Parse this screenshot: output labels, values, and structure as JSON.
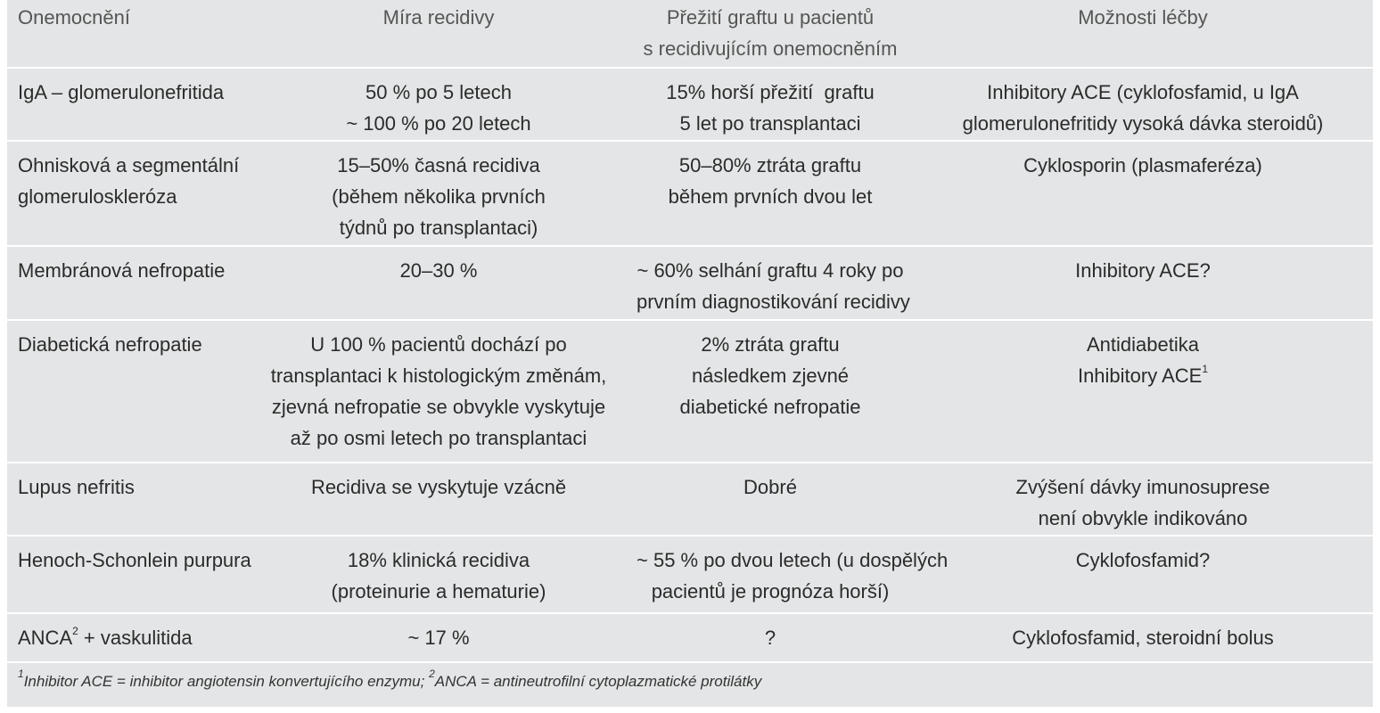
{
  "headers": {
    "disease": "Onemocnění",
    "recurrence_rate": [
      "Míra recidivy"
    ],
    "graft_survival": [
      "Přežití graftu u pacientů",
      "s recidivujícím onemocněním"
    ],
    "treatment": [
      "Možnosti léčby"
    ]
  },
  "rows": [
    {
      "disease": [
        "IgA – glomerulonefritida"
      ],
      "recurrence_rate": [
        "50 % po 5 letech",
        "~ 100 % po 20 letech"
      ],
      "graft_survival": [
        "15% horší přežití  graftu",
        "5 let po transplantaci"
      ],
      "treatment": [
        "Inhibitory ACE (cyklofosfamid, u IgA",
        "glomerulonefritidy vysoká dávka steroidů)"
      ]
    },
    {
      "disease": [
        "Ohnisková a segmentální",
        "glomeruloskleróza"
      ],
      "recurrence_rate": [
        "15–50% časná recidiva",
        "(během několika prvních",
        "týdnů po transplantaci)"
      ],
      "graft_survival": [
        "50–80% ztráta graftu",
        "během prvních dvou let"
      ],
      "treatment": [
        "Cyklosporin (plasmaferéza)"
      ]
    },
    {
      "disease": [
        "Membránová nefropatie"
      ],
      "recurrence_rate": [
        "20–30 %"
      ],
      "graft_survival": [
        "~ 60% selhání graftu 4 roky po",
        "prvním diagnostikování recidivy"
      ],
      "treatment": [
        "Inhibitory ACE?"
      ]
    },
    {
      "disease": [
        "Diabetická nefropatie"
      ],
      "recurrence_rate": [
        "U 100 % pacientů dochází po",
        "transplantaci k histologickým změnám,",
        "zjevná nefropatie se obvykle vyskytuje",
        "až po osmi letech po transplantaci"
      ],
      "graft_survival": [
        "2% ztráta graftu",
        "následkem zjevné",
        "diabetické nefropatie"
      ],
      "treatment": [
        "Antidiabetika",
        "Inhibitory ACE"
      ],
      "treatment_sup": "1"
    },
    {
      "disease": [
        "Lupus nefritis"
      ],
      "recurrence_rate": [
        "Recidiva se vyskytuje vzácně"
      ],
      "graft_survival": [
        "Dobré"
      ],
      "treatment": [
        "Zvýšení dávky imunosuprese",
        "není obvykle indikováno"
      ]
    },
    {
      "disease": [
        "Henoch-Schonlein purpura"
      ],
      "recurrence_rate": [
        "18% klinická recidiva",
        "(proteinurie a hematurie)"
      ],
      "graft_survival": [
        "~ 55 % po dvou letech (u dospělých",
        "pacientů je prognóza horší)"
      ],
      "treatment": [
        "Cyklofosfamid?"
      ]
    },
    {
      "disease": [
        "ANCA",
        " + vaskulitida"
      ],
      "disease_sup": "2",
      "recurrence_rate": [
        "~ 17 %"
      ],
      "graft_survival": [
        "?"
      ],
      "treatment": [
        "Cyklofosfamid, steroidní bolus"
      ]
    }
  ],
  "footnote": {
    "sup1": "1",
    "text1": "Inhibitor ACE = inhibitor angiotensin konvertujícího enzymu; ",
    "sup2": "2",
    "text2": "ANCA = antineutrofilní cytoplazmatické protilátky"
  }
}
